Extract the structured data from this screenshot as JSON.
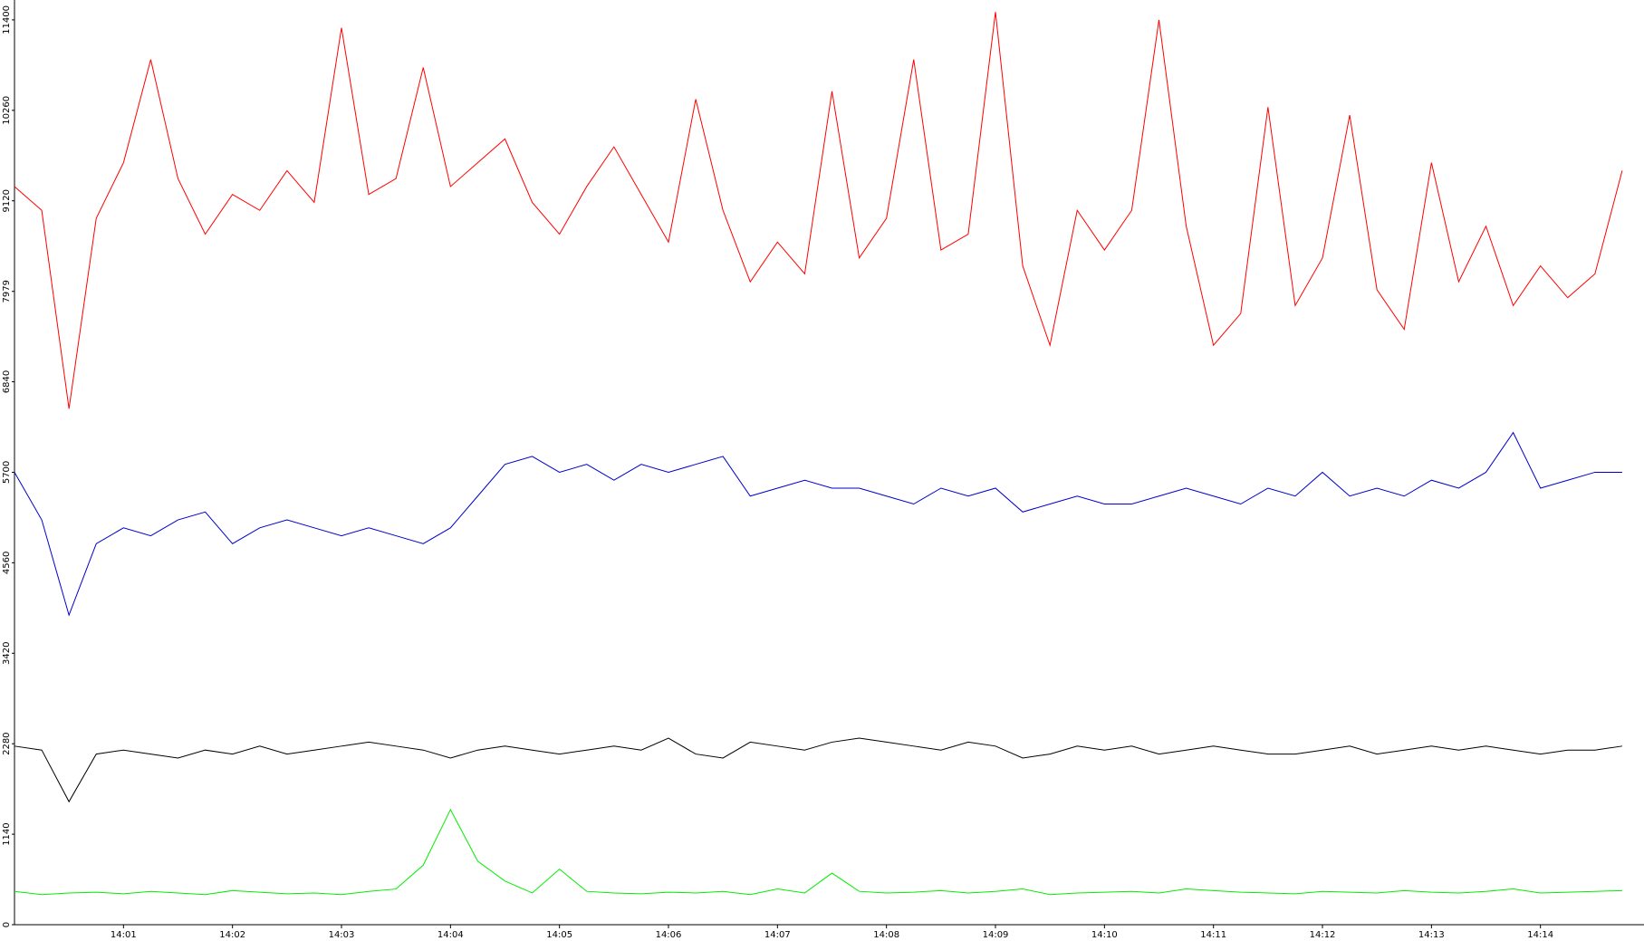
{
  "chart_data": {
    "type": "line",
    "x": [
      0,
      15,
      30,
      45,
      60,
      75,
      90,
      105,
      120,
      135,
      150,
      165,
      180,
      195,
      210,
      225,
      240,
      255,
      270,
      285,
      300,
      315,
      330,
      345,
      360,
      375,
      390,
      405,
      420,
      435,
      450,
      465,
      480,
      495,
      510,
      525,
      540,
      555,
      570,
      585,
      600,
      615,
      630,
      645,
      660,
      675,
      690,
      705,
      720,
      735,
      750,
      765,
      780,
      795,
      810,
      825,
      840,
      855,
      870,
      885
    ],
    "xlim": [
      0,
      897
    ],
    "xticks": [
      {
        "value": 60,
        "label": "14:01"
      },
      {
        "value": 120,
        "label": "14:02"
      },
      {
        "value": 180,
        "label": "14:03"
      },
      {
        "value": 240,
        "label": "14:04"
      },
      {
        "value": 300,
        "label": "14:05"
      },
      {
        "value": 360,
        "label": "14:06"
      },
      {
        "value": 420,
        "label": "14:07"
      },
      {
        "value": 480,
        "label": "14:08"
      },
      {
        "value": 540,
        "label": "14:09"
      },
      {
        "value": 600,
        "label": "14:10"
      },
      {
        "value": 660,
        "label": "14:11"
      },
      {
        "value": 720,
        "label": "14:12"
      },
      {
        "value": 780,
        "label": "14:13"
      },
      {
        "value": 840,
        "label": "14:14"
      }
    ],
    "ylim": [
      0,
      11650
    ],
    "yticks": [
      0,
      1140,
      2280,
      3420,
      4560,
      5700,
      6840,
      7979,
      9120,
      10260,
      11400
    ],
    "series": [
      {
        "name": "red",
        "color": "#ff0000",
        "values": [
          9300,
          9000,
          6500,
          8900,
          9600,
          10900,
          9400,
          8700,
          9200,
          9000,
          9500,
          9100,
          11300,
          9200,
          9400,
          10800,
          9300,
          9600,
          9900,
          9100,
          8700,
          9300,
          9800,
          9200,
          8600,
          10400,
          9000,
          8100,
          8600,
          8200,
          10500,
          8400,
          8900,
          10900,
          8500,
          8700,
          11500,
          8300,
          7300,
          9000,
          8500,
          9000,
          11400,
          8800,
          7300,
          7700,
          10300,
          7800,
          8400,
          10200,
          8000,
          7500,
          9600,
          8100,
          8800,
          7800,
          8300,
          7900,
          8200,
          9500
        ]
      },
      {
        "name": "blue",
        "color": "#0000cc",
        "values": [
          5700,
          5100,
          3900,
          4800,
          5000,
          4900,
          5100,
          5200,
          4800,
          5000,
          5100,
          5000,
          4900,
          5000,
          4900,
          4800,
          5000,
          5400,
          5800,
          5900,
          5700,
          5800,
          5600,
          5800,
          5700,
          5800,
          5900,
          5400,
          5500,
          5600,
          5500,
          5500,
          5400,
          5300,
          5500,
          5400,
          5500,
          5200,
          5300,
          5400,
          5300,
          5300,
          5400,
          5500,
          5400,
          5300,
          5500,
          5400,
          5700,
          5400,
          5500,
          5400,
          5600,
          5500,
          5700,
          6200,
          5500,
          5600,
          5700,
          5700
        ]
      },
      {
        "name": "black",
        "color": "#000000",
        "values": [
          2250,
          2200,
          1550,
          2150,
          2200,
          2150,
          2100,
          2200,
          2150,
          2250,
          2150,
          2200,
          2250,
          2300,
          2250,
          2200,
          2100,
          2200,
          2250,
          2200,
          2150,
          2200,
          2250,
          2200,
          2350,
          2150,
          2100,
          2300,
          2250,
          2200,
          2300,
          2350,
          2300,
          2250,
          2200,
          2300,
          2250,
          2100,
          2150,
          2250,
          2200,
          2250,
          2150,
          2200,
          2250,
          2200,
          2150,
          2150,
          2200,
          2250,
          2150,
          2200,
          2250,
          2200,
          2250,
          2200,
          2150,
          2200,
          2200,
          2250
        ]
      },
      {
        "name": "green",
        "color": "#00ee00",
        "values": [
          420,
          380,
          400,
          410,
          390,
          420,
          400,
          380,
          430,
          410,
          390,
          400,
          380,
          420,
          450,
          750,
          1450,
          800,
          550,
          400,
          700,
          420,
          400,
          390,
          410,
          400,
          420,
          380,
          450,
          400,
          650,
          420,
          400,
          410,
          430,
          400,
          420,
          450,
          380,
          400,
          410,
          420,
          400,
          450,
          430,
          410,
          400,
          390,
          420,
          410,
          400,
          430,
          410,
          400,
          420,
          450,
          400,
          410,
          420,
          430
        ]
      }
    ]
  }
}
